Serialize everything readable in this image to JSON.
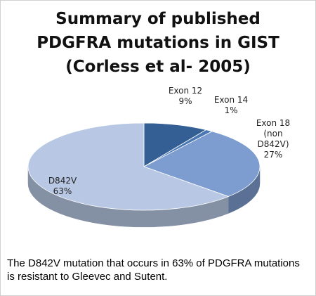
{
  "chart_data": {
    "type": "pie",
    "title": "Summary of published\nPDGFRA mutations in GIST\n(Corless et al- 2005)",
    "categories": [
      "Exon 12",
      "Exon 14",
      "Exon 18 (non D842V)",
      "D842V"
    ],
    "values": [
      9,
      1,
      27,
      63
    ],
    "value_labels": [
      "9%",
      "1%",
      "27%",
      "63%"
    ],
    "colors": [
      "#335f95",
      "#4a78b4",
      "#7d9ccf",
      "#b8c8e4"
    ]
  },
  "caption": "The D842V mutation that occurs in 63% of PDGFRA mutations is resistant to Gleevec and Sutent."
}
